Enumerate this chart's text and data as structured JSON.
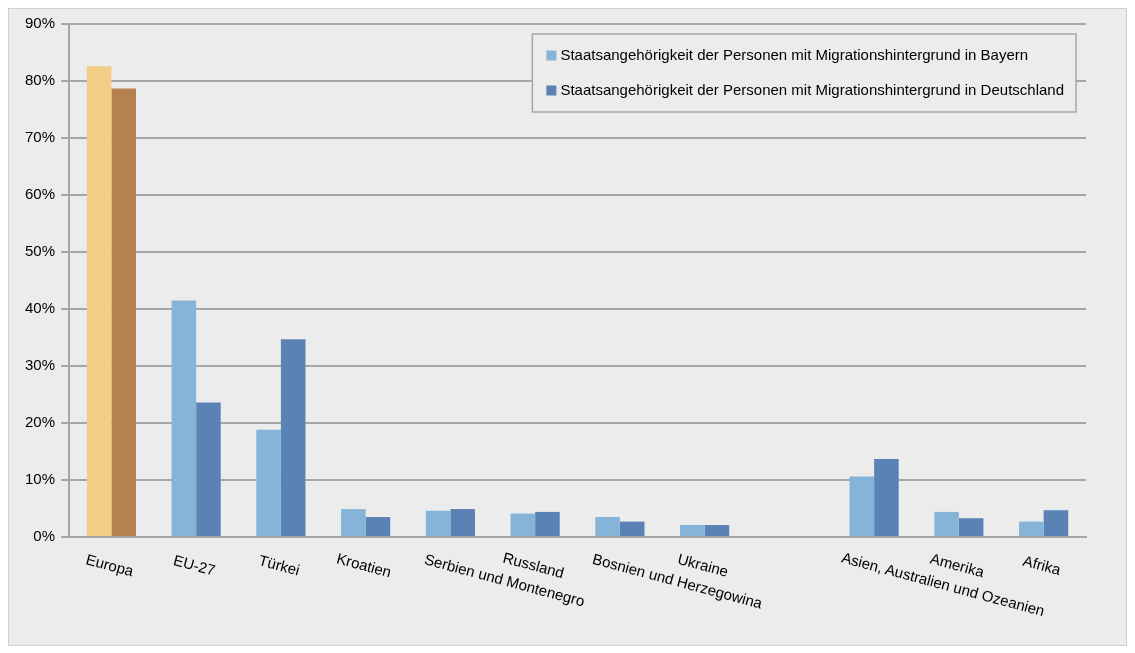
{
  "chart_data": {
    "type": "bar",
    "categories": [
      "Europa",
      "EU-27",
      "Türkei",
      "Kroatien",
      "Serbien und Montenegro",
      "Russland",
      "Bosnien und Herzegowina",
      "Ukraine",
      null,
      "Asien, Australien und Ozeanien",
      "Amerika",
      "Afrika"
    ],
    "series": [
      {
        "name": "Staatsangehörigkeit der Personen mit Migrationshintergrund in Bayern",
        "color": "#85b4d8",
        "colors": [
          "#f2cd85",
          "#85b4d8",
          "#85b4d8",
          "#85b4d8",
          "#85b4d8",
          "#85b4d8",
          "#85b4d8",
          "#85b4d8",
          "#85b4d8",
          "#85b4d8",
          "#85b4d8",
          "#85b4d8"
        ],
        "values": [
          82.6,
          41.5,
          18.8,
          4.9,
          4.6,
          4.1,
          3.5,
          2.1,
          null,
          10.6,
          4.4,
          2.7
        ]
      },
      {
        "name": "Staatsangehörigkeit der Personen mit Migrationshintergrund in Deutschland",
        "color": "#5b82b4",
        "colors": [
          "#b5824f",
          "#5b82b4",
          "#5b82b4",
          "#5b82b4",
          "#5b82b4",
          "#5b82b4",
          "#5b82b4",
          "#5b82b4",
          "#5b82b4",
          "#5b82b4",
          "#5b82b4",
          "#5b82b4"
        ],
        "values": [
          78.7,
          23.6,
          34.7,
          3.5,
          4.9,
          4.4,
          2.7,
          2.1,
          null,
          13.7,
          3.3,
          4.7
        ]
      }
    ],
    "ylim": [
      0,
      90
    ],
    "yticks": [
      {
        "value": 0,
        "label": "0%"
      },
      {
        "value": 10,
        "label": "10%"
      },
      {
        "value": 20,
        "label": "20%"
      },
      {
        "value": 30,
        "label": "30%"
      },
      {
        "value": 40,
        "label": "40%"
      },
      {
        "value": 50,
        "label": "50%"
      },
      {
        "value": 60,
        "label": "60%"
      },
      {
        "value": 70,
        "label": "70%"
      },
      {
        "value": 80,
        "label": "80%"
      },
      {
        "value": 90,
        "label": "90%"
      }
    ],
    "grid": "y",
    "legend": "top right"
  }
}
